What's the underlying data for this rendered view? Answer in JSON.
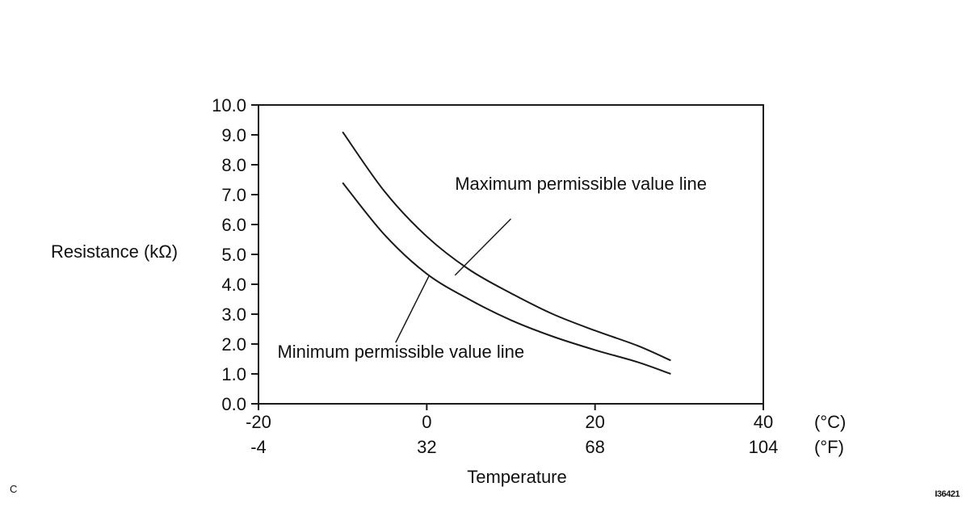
{
  "page": {
    "corner_label": "C",
    "figure_code": "I36421"
  },
  "chart_data": {
    "type": "line",
    "title": "",
    "xlabel": "Temperature",
    "ylabel": "Resistance (kΩ)",
    "xlim_c": [
      -20,
      40
    ],
    "ylim": [
      0,
      10
    ],
    "grid": false,
    "legend_position": "none (inline annotations with leader lines)",
    "line_color": "#1a1a1a",
    "y_ticks": [
      0,
      1,
      2,
      3,
      4,
      5,
      6,
      7,
      8,
      9,
      10
    ],
    "y_tick_decimals": 1,
    "x_ticks": [
      {
        "c": "-20",
        "f": "-4"
      },
      {
        "c": "0",
        "f": "32"
      },
      {
        "c": "20",
        "f": "68"
      },
      {
        "c": "40",
        "f": "104"
      }
    ],
    "x_unit_labels": [
      "(°C)",
      "(°F)"
    ],
    "series": [
      {
        "name": "Maximum permissible value line",
        "points": [
          [
            -10,
            9.1
          ],
          [
            -5,
            7.1
          ],
          [
            0,
            5.6
          ],
          [
            5,
            4.5
          ],
          [
            10,
            3.7
          ],
          [
            15,
            3.0
          ],
          [
            20,
            2.45
          ],
          [
            25,
            1.95
          ],
          [
            29,
            1.45
          ]
        ]
      },
      {
        "name": "Minimum permissible value line",
        "points": [
          [
            -10,
            7.4
          ],
          [
            -5,
            5.65
          ],
          [
            0,
            4.35
          ],
          [
            5,
            3.5
          ],
          [
            10,
            2.8
          ],
          [
            15,
            2.25
          ],
          [
            20,
            1.8
          ],
          [
            25,
            1.4
          ],
          [
            29,
            1.0
          ]
        ]
      }
    ],
    "annotations": [
      {
        "text": "Maximum permissible value line",
        "text_at": [
          3.35,
          7.16
        ],
        "leader": [
          [
            10.0,
            6.19
          ],
          [
            3.35,
            4.3
          ]
        ]
      },
      {
        "text": "Minimum permissible value line",
        "text_at": [
          -17.75,
          1.54
        ],
        "leader": [
          [
            -3.7,
            2.05
          ],
          [
            0.3,
            4.3
          ]
        ]
      }
    ]
  }
}
